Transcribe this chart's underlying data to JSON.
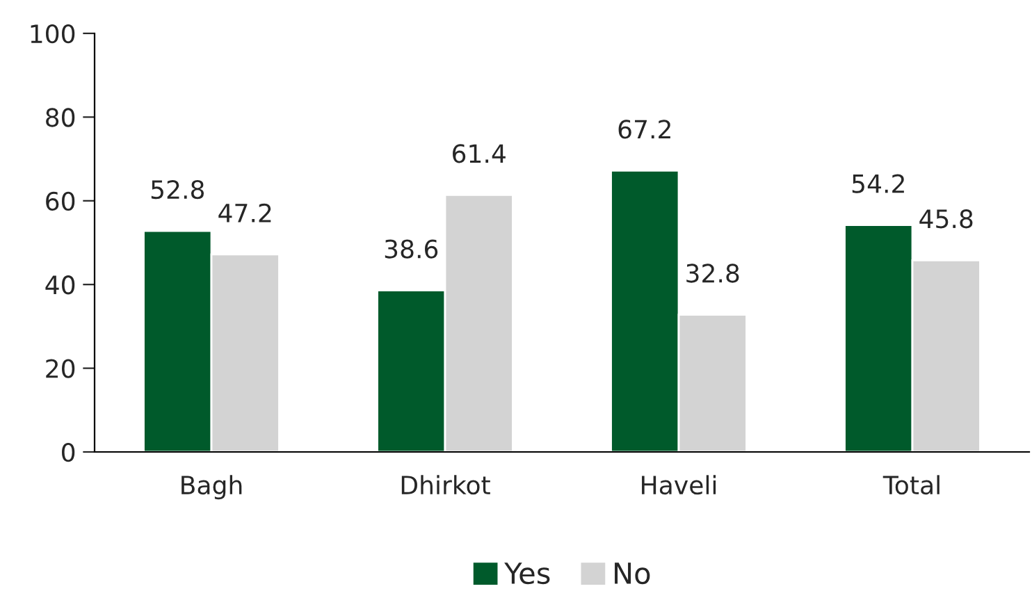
{
  "chart_data": {
    "type": "bar",
    "categories": [
      "Bagh",
      "Dhirkot",
      "Haveli",
      "Total"
    ],
    "series": [
      {
        "name": "Yes",
        "color": "#005a2b",
        "values": [
          52.8,
          38.6,
          67.2,
          54.2
        ]
      },
      {
        "name": "No",
        "color": "#d3d3d3",
        "values": [
          47.2,
          61.4,
          32.8,
          45.8
        ]
      }
    ],
    "ylim": [
      0,
      100
    ],
    "yticks": [
      0,
      20,
      40,
      60,
      80,
      100
    ],
    "data_labels": true,
    "grid": false,
    "legend": "bottom"
  }
}
